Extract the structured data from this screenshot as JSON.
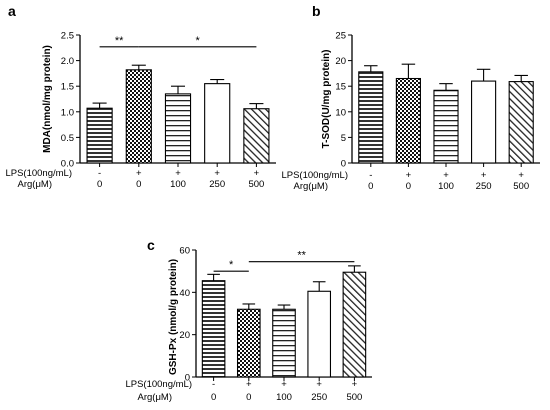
{
  "panels": [
    {
      "letter": "a",
      "ylabel": "MDA(nmol/mg protein)",
      "ylim": [
        0,
        2.5
      ],
      "yticks": [
        "0.0",
        "0.5",
        "1.0",
        "1.5",
        "2.0",
        "2.5"
      ],
      "significance": [
        {
          "from": 0,
          "to": 1,
          "label": "**"
        },
        {
          "from": 1,
          "to": 4,
          "label": "*"
        }
      ]
    },
    {
      "letter": "b",
      "ylabel": "T-SOD(U/mg protein)",
      "ylim": [
        0,
        25
      ],
      "yticks": [
        "0",
        "5",
        "10",
        "15",
        "20",
        "25"
      ],
      "significance": []
    },
    {
      "letter": "c",
      "ylabel": "GSH-Px (nmol/g protein)",
      "ylim": [
        0,
        60
      ],
      "yticks": [
        "0",
        "20",
        "40",
        "60"
      ],
      "significance": [
        {
          "from": 0,
          "to": 1,
          "label": "*"
        },
        {
          "from": 1,
          "to": 4,
          "label": "**"
        }
      ]
    }
  ],
  "row_labels": {
    "lps": "LPS(100ng/mL)",
    "arg": "Arg(μM)"
  },
  "lps_values": [
    "-",
    "+",
    "+",
    "+",
    "+"
  ],
  "arg_values": [
    "0",
    "0",
    "100",
    "250",
    "500"
  ],
  "bar_patterns": [
    "horizontal-lines",
    "checkerboard",
    "horizontal-lines-wide",
    "white",
    "diagonal-hatch"
  ],
  "chart_data": [
    {
      "type": "bar",
      "categories": [
        "LPS - / Arg 0",
        "LPS + / Arg 0",
        "LPS + / Arg 100",
        "LPS + / Arg 250",
        "LPS + / Arg 500"
      ],
      "values": [
        1.07,
        1.82,
        1.35,
        1.55,
        1.06
      ],
      "errors": [
        0.1,
        0.09,
        0.15,
        0.08,
        0.1
      ],
      "ylabel": "MDA(nmol/mg protein)",
      "ylim": [
        0,
        2.5
      ]
    },
    {
      "type": "bar",
      "categories": [
        "LPS - / Arg 0",
        "LPS + / Arg 0",
        "LPS + / Arg 100",
        "LPS + / Arg 250",
        "LPS + / Arg 500"
      ],
      "values": [
        17.8,
        16.5,
        14.2,
        16.0,
        15.9
      ],
      "errors": [
        1.2,
        2.8,
        1.3,
        2.3,
        1.2
      ],
      "ylabel": "T-SOD(U/mg protein)",
      "ylim": [
        0,
        25
      ]
    },
    {
      "type": "bar",
      "categories": [
        "LPS - / Arg 0",
        "LPS + / Arg 0",
        "LPS + / Arg 100",
        "LPS + / Arg 250",
        "LPS + / Arg 500"
      ],
      "values": [
        45.5,
        32.0,
        32.0,
        40.5,
        49.5
      ],
      "errors": [
        3.0,
        2.5,
        2.0,
        4.5,
        3.0
      ],
      "ylabel": "GSH-Px (nmol/g protein)",
      "ylim": [
        0,
        60
      ]
    }
  ]
}
